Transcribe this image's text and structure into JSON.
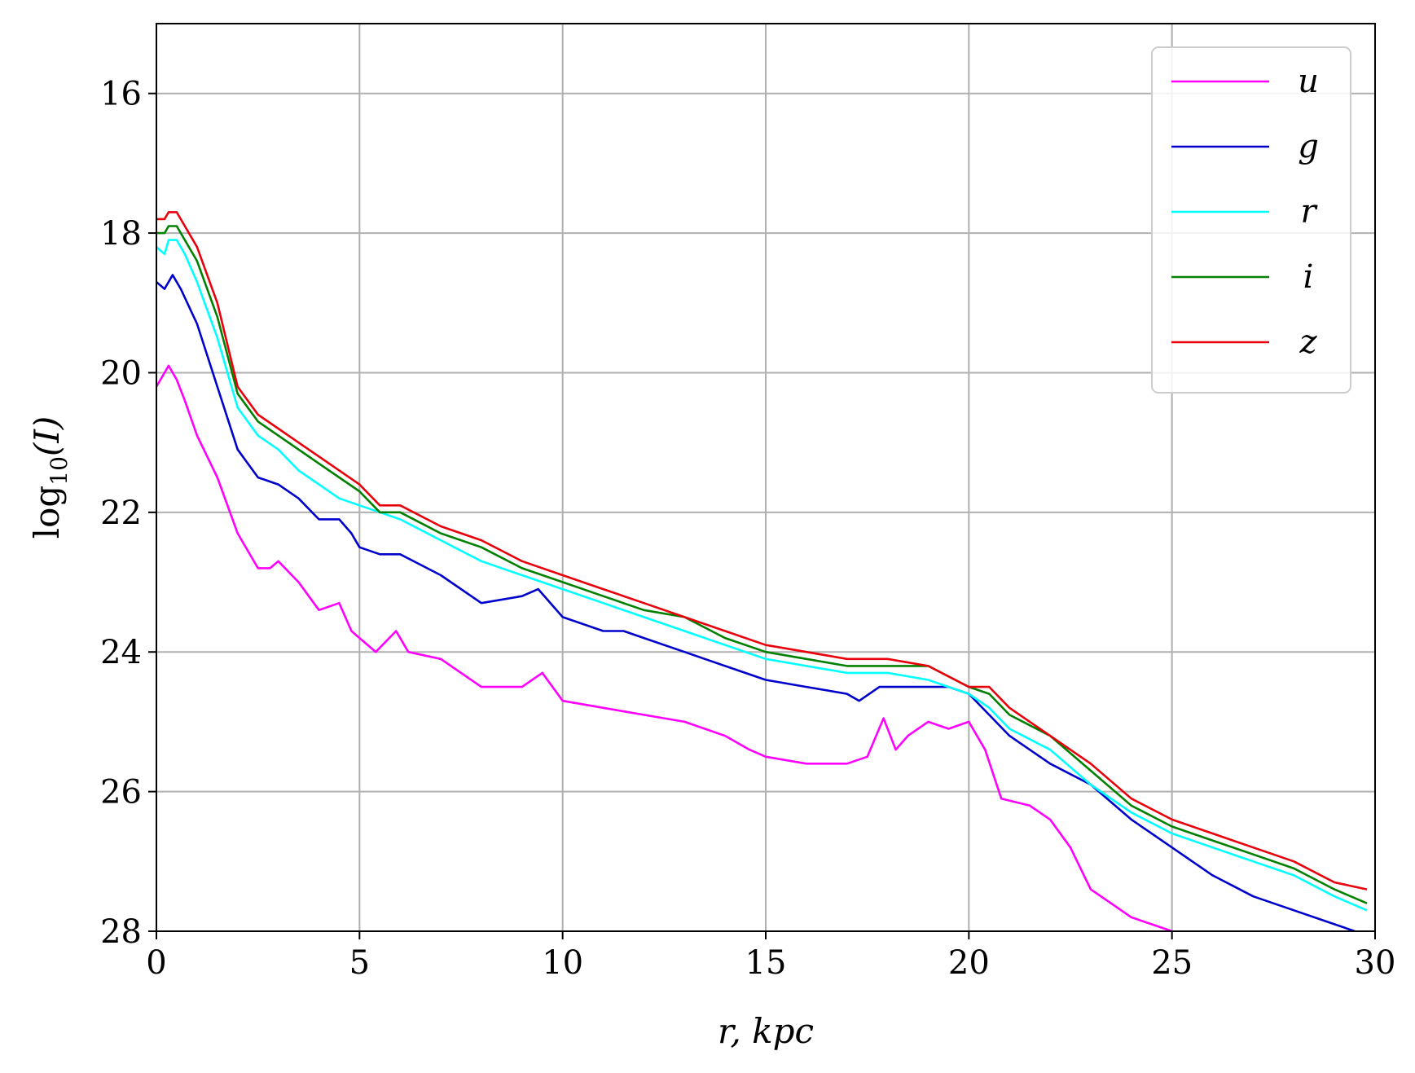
{
  "chart_data": {
    "type": "line",
    "xlabel": "r, kpc",
    "ylabel": "log10(I)",
    "ylabel_parts": {
      "base": "log",
      "sub": "10",
      "arg": "(I)"
    },
    "xlim": [
      0,
      30
    ],
    "ylim": [
      28,
      15
    ],
    "y_inverted": true,
    "grid": true,
    "legend_position": "top-right",
    "x_ticks": [
      0,
      5,
      10,
      15,
      20,
      25,
      30
    ],
    "x_tick_labels": [
      "0",
      "5",
      "10",
      "15",
      "20",
      "25",
      "30"
    ],
    "y_ticks": [
      16,
      18,
      20,
      22,
      24,
      26,
      28
    ],
    "y_tick_labels": [
      "16",
      "18",
      "20",
      "22",
      "24",
      "26",
      "28"
    ],
    "series": [
      {
        "name": "u",
        "color": "#ff00ff",
        "x": [
          0,
          0.3,
          0.5,
          0.7,
          1.0,
          1.5,
          2.0,
          2.5,
          2.8,
          3.0,
          3.5,
          4.0,
          4.5,
          4.8,
          5.0,
          5.4,
          5.9,
          6.2,
          7.0,
          8.0,
          9.0,
          9.5,
          10.0,
          11.0,
          12.0,
          13.0,
          14.0,
          14.6,
          15.0,
          16.0,
          17.0,
          17.5,
          17.9,
          18.2,
          18.5,
          19.0,
          19.5,
          20.0,
          20.4,
          20.8,
          21.5,
          22.0,
          22.5,
          23.0,
          23.5,
          24.0,
          24.5,
          25.0
        ],
        "y": [
          20.2,
          19.9,
          20.1,
          20.4,
          20.9,
          21.5,
          22.3,
          22.8,
          22.8,
          22.7,
          23.0,
          23.4,
          23.3,
          23.7,
          23.8,
          24.0,
          23.7,
          24.0,
          24.1,
          24.5,
          24.5,
          24.3,
          24.7,
          24.8,
          24.9,
          25.0,
          25.2,
          25.4,
          25.5,
          25.6,
          25.6,
          25.5,
          24.95,
          25.4,
          25.2,
          25.0,
          25.1,
          25.0,
          25.4,
          26.1,
          26.2,
          26.4,
          26.8,
          27.4,
          27.6,
          27.8,
          27.9,
          28.0
        ]
      },
      {
        "name": "g",
        "color": "#0000cd",
        "x": [
          0,
          0.2,
          0.4,
          0.6,
          1.0,
          1.5,
          2.0,
          2.5,
          3.0,
          3.5,
          4.0,
          4.5,
          4.8,
          5.0,
          5.5,
          6.0,
          7.0,
          8.0,
          9.0,
          9.4,
          10.0,
          11.0,
          11.5,
          12.0,
          13.0,
          14.0,
          15.0,
          16.0,
          17.0,
          17.3,
          17.8,
          18.5,
          19.0,
          19.5,
          20.0,
          20.5,
          21.0,
          22.0,
          23.0,
          24.0,
          25.0,
          26.0,
          27.0,
          28.0,
          29.0,
          29.5
        ],
        "y": [
          18.7,
          18.8,
          18.6,
          18.8,
          19.3,
          20.2,
          21.1,
          21.5,
          21.6,
          21.8,
          22.1,
          22.1,
          22.3,
          22.5,
          22.6,
          22.6,
          22.9,
          23.3,
          23.2,
          23.1,
          23.5,
          23.7,
          23.7,
          23.8,
          24.0,
          24.2,
          24.4,
          24.5,
          24.6,
          24.7,
          24.5,
          24.5,
          24.5,
          24.5,
          24.6,
          24.9,
          25.2,
          25.6,
          25.9,
          26.4,
          26.8,
          27.2,
          27.5,
          27.7,
          27.9,
          28.0
        ]
      },
      {
        "name": "r",
        "color": "#00ffff",
        "x": [
          0,
          0.2,
          0.3,
          0.5,
          0.7,
          1.0,
          1.5,
          2.0,
          2.5,
          3.0,
          3.5,
          4.0,
          4.5,
          5.0,
          5.5,
          6.0,
          7.0,
          8.0,
          9.0,
          10.0,
          11.0,
          12.0,
          13.0,
          14.0,
          15.0,
          16.0,
          17.0,
          18.0,
          19.0,
          20.0,
          20.5,
          21.0,
          22.0,
          23.0,
          24.0,
          25.0,
          26.0,
          27.0,
          28.0,
          29.0,
          29.8
        ],
        "y": [
          18.2,
          18.3,
          18.1,
          18.1,
          18.3,
          18.7,
          19.5,
          20.5,
          20.9,
          21.1,
          21.4,
          21.6,
          21.8,
          21.9,
          22.0,
          22.1,
          22.4,
          22.7,
          22.9,
          23.1,
          23.3,
          23.5,
          23.7,
          23.9,
          24.1,
          24.2,
          24.3,
          24.3,
          24.4,
          24.6,
          24.8,
          25.1,
          25.4,
          25.9,
          26.3,
          26.6,
          26.8,
          27.0,
          27.2,
          27.5,
          27.7
        ]
      },
      {
        "name": "i",
        "color": "#008000",
        "x": [
          0,
          0.2,
          0.3,
          0.5,
          0.7,
          1.0,
          1.5,
          2.0,
          2.5,
          3.0,
          3.5,
          4.0,
          4.5,
          5.0,
          5.5,
          6.0,
          7.0,
          8.0,
          9.0,
          10.0,
          11.0,
          12.0,
          13.0,
          14.0,
          15.0,
          16.0,
          17.0,
          18.0,
          19.0,
          20.0,
          20.5,
          21.0,
          22.0,
          23.0,
          24.0,
          25.0,
          26.0,
          27.0,
          28.0,
          29.0,
          29.8
        ],
        "y": [
          18.0,
          18.0,
          17.9,
          17.9,
          18.1,
          18.4,
          19.2,
          20.3,
          20.7,
          20.9,
          21.1,
          21.3,
          21.5,
          21.7,
          22.0,
          22.0,
          22.3,
          22.5,
          22.8,
          23.0,
          23.2,
          23.4,
          23.5,
          23.8,
          24.0,
          24.1,
          24.2,
          24.2,
          24.2,
          24.5,
          24.6,
          24.9,
          25.2,
          25.7,
          26.2,
          26.5,
          26.7,
          26.9,
          27.1,
          27.4,
          27.6
        ]
      },
      {
        "name": "z",
        "color": "#e8000b",
        "x": [
          0,
          0.2,
          0.3,
          0.5,
          0.7,
          1.0,
          1.5,
          2.0,
          2.5,
          3.0,
          3.5,
          4.0,
          4.5,
          5.0,
          5.5,
          6.0,
          7.0,
          8.0,
          9.0,
          10.0,
          11.0,
          12.0,
          13.0,
          14.0,
          15.0,
          16.0,
          17.0,
          18.0,
          19.0,
          20.0,
          20.5,
          21.0,
          22.0,
          23.0,
          24.0,
          25.0,
          26.0,
          27.0,
          28.0,
          29.0,
          29.8
        ],
        "y": [
          17.8,
          17.8,
          17.7,
          17.7,
          17.9,
          18.2,
          19.0,
          20.2,
          20.6,
          20.8,
          21.0,
          21.2,
          21.4,
          21.6,
          21.9,
          21.9,
          22.2,
          22.4,
          22.7,
          22.9,
          23.1,
          23.3,
          23.5,
          23.7,
          23.9,
          24.0,
          24.1,
          24.1,
          24.2,
          24.5,
          24.5,
          24.8,
          25.2,
          25.6,
          26.1,
          26.4,
          26.6,
          26.8,
          27.0,
          27.3,
          27.4
        ]
      }
    ]
  }
}
